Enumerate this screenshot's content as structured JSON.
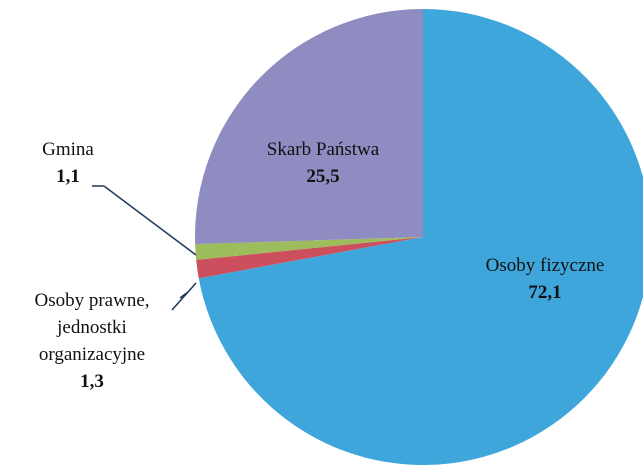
{
  "chart_data": {
    "type": "pie",
    "categories": [
      "Osoby fizyczne",
      "Osoby prawne, jednostki organizacyjne",
      "Gmina",
      "Skarb Państwa"
    ],
    "values": [
      72.1,
      1.3,
      1.1,
      25.5
    ],
    "value_labels": [
      "72,1",
      "1,3",
      "1,1",
      "25,5"
    ],
    "colors": [
      "#3fa6dc",
      "#cc4f5e",
      "#9dbd5c",
      "#8f8cc2"
    ]
  }
}
